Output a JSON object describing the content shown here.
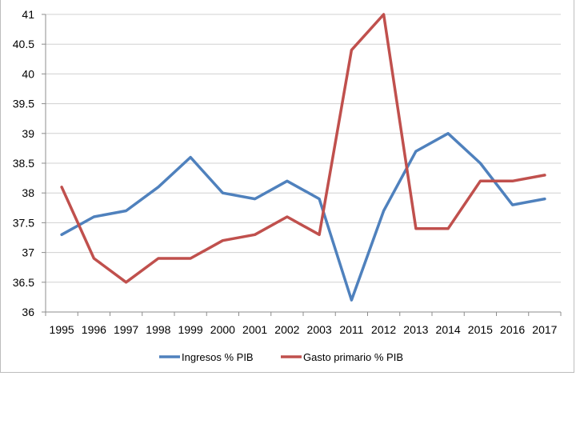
{
  "chart_data": {
    "type": "line",
    "title": "",
    "xlabel": "",
    "ylabel": "",
    "categories": [
      "1995",
      "1996",
      "1997",
      "1998",
      "1999",
      "2000",
      "2001",
      "2002",
      "2003",
      "2011",
      "2012",
      "2013",
      "2014",
      "2015",
      "2016",
      "2017"
    ],
    "ylim": [
      36,
      41
    ],
    "yticks": [
      36,
      36.5,
      37,
      37.5,
      38,
      38.5,
      39,
      39.5,
      40,
      40.5,
      41
    ],
    "grid": "horizontal",
    "legend_position": "bottom",
    "series": [
      {
        "name": "Ingresos % PIB",
        "color": "#4f81bd",
        "values": [
          37.3,
          37.6,
          37.7,
          38.1,
          38.6,
          38.0,
          37.9,
          38.2,
          37.9,
          36.2,
          37.7,
          38.7,
          39.0,
          38.5,
          37.8,
          37.9
        ]
      },
      {
        "name": "Gasto primario % PIB",
        "color": "#c0504d",
        "values": [
          38.1,
          36.9,
          36.5,
          36.9,
          36.9,
          37.2,
          37.3,
          37.6,
          37.3,
          40.4,
          41.0,
          37.4,
          37.4,
          38.2,
          38.2,
          38.3
        ]
      }
    ]
  }
}
